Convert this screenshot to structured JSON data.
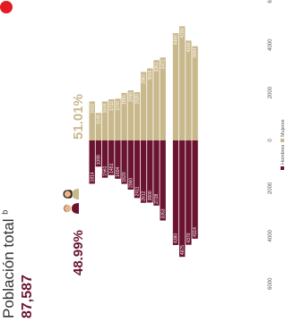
{
  "title": {
    "label": "Población total",
    "superscript": "b",
    "value": "87,587"
  },
  "percentages": {
    "men": "48.99%",
    "women": "51.01%"
  },
  "icons": {
    "men": "man-icon",
    "women": "woman-icon"
  },
  "chart_data": {
    "type": "bar",
    "orientation": "population-pyramid",
    "categories": [
      "",
      "",
      "",
      "",
      "",
      "",
      "",
      "",
      "",
      "",
      "",
      "",
      "",
      "",
      "",
      "",
      "",
      "",
      "",
      "",
      ""
    ],
    "series": [
      {
        "name": "Hombres",
        "color": "#6b1431",
        "values": [
          1814,
          1099,
          1561,
          1451,
          1604,
          1820,
          2060,
          2411,
          2612,
          2600,
          2728,
          3353,
          null,
          4380,
          4875,
          4370,
          4114,
          null,
          null,
          null,
          null
        ]
      },
      {
        "name": "Mujeres",
        "color": "#c9b88b",
        "values": [
          1632,
          1149,
          1634,
          1722,
          1747,
          1991,
          2098,
          2020,
          2867,
          3016,
          3361,
          3472,
          null,
          4490,
          4780,
          4180,
          3944,
          null,
          null,
          null,
          null
        ]
      }
    ],
    "axis": {
      "ticks": [
        "6000",
        "4000",
        "2000",
        "0",
        "2000",
        "4000",
        "6000"
      ],
      "range": [
        -6000,
        6000
      ]
    },
    "legend": {
      "position": "bottom",
      "items": [
        "Hombres",
        "Mujeres"
      ]
    }
  }
}
